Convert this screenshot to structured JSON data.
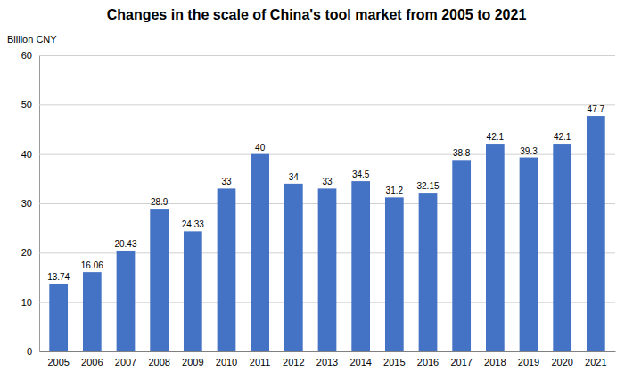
{
  "chart_data": {
    "type": "bar",
    "title": "Changes in the scale of China's tool market from 2005 to 2021",
    "ylabel": "Billion CNY",
    "categories": [
      "2005",
      "2006",
      "2007",
      "2008",
      "2009",
      "2010",
      "2011",
      "2012",
      "2013",
      "2014",
      "2015",
      "2016",
      "2017",
      "2018",
      "2019",
      "2020",
      "2021"
    ],
    "values": [
      13.74,
      16.06,
      20.43,
      28.9,
      24.33,
      33,
      40,
      34,
      33,
      34.5,
      31.2,
      32.15,
      38.8,
      42.1,
      39.3,
      42.1,
      47.7
    ],
    "color": "#4472C4",
    "ylim": [
      0,
      60
    ],
    "yticks": [
      0,
      10,
      20,
      30,
      40,
      50,
      60
    ],
    "grid": true,
    "data_labels": true
  }
}
